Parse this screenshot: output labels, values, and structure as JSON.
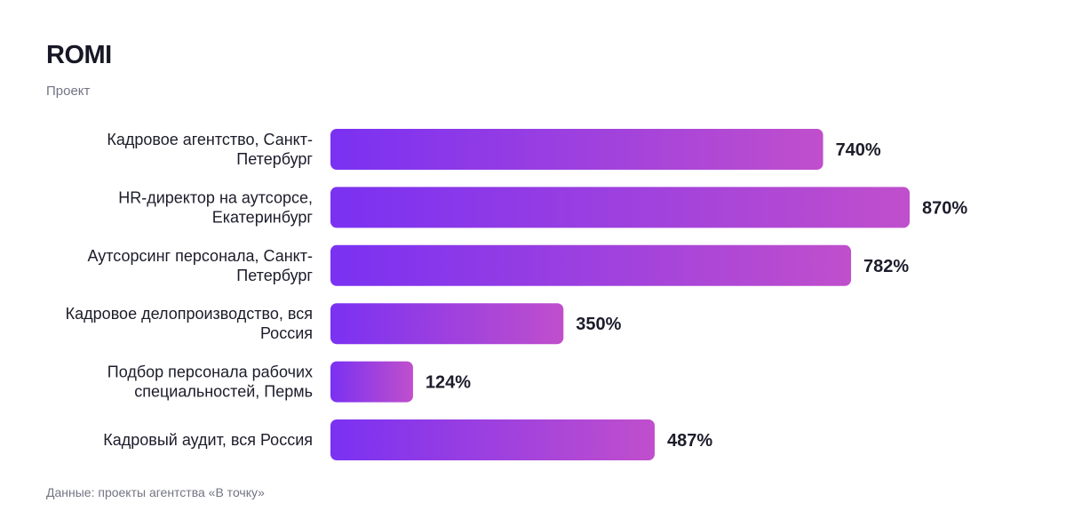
{
  "chart_data": {
    "type": "bar",
    "orientation": "horizontal",
    "title": "ROMI",
    "subtitle": "Проект",
    "categories": [
      [
        "Кадровое агентство, Санкт-",
        "Петербург"
      ],
      [
        "HR-директор на аутсорсе,",
        "Екатеринбург"
      ],
      [
        "Аутсорсинг персонала, Санкт-",
        "Петербург"
      ],
      [
        "Кадровое делопроизводство, вся",
        "Россия"
      ],
      [
        "Подбор персонала рабочих",
        "специальностей, Пермь"
      ],
      [
        "Кадровый аудит, вся Россия"
      ]
    ],
    "values": [
      740,
      870,
      782,
      350,
      124,
      487
    ],
    "value_labels": [
      "740%",
      "870%",
      "782%",
      "350%",
      "124%",
      "487%"
    ],
    "xlim": [
      0,
      870
    ],
    "grid": false,
    "legend": "none",
    "colors": {
      "bar_gradient_start": "#7a31f2",
      "bar_gradient_end": "#c04fcc"
    }
  },
  "footer": "Данные: проекты агентства «В точку»"
}
